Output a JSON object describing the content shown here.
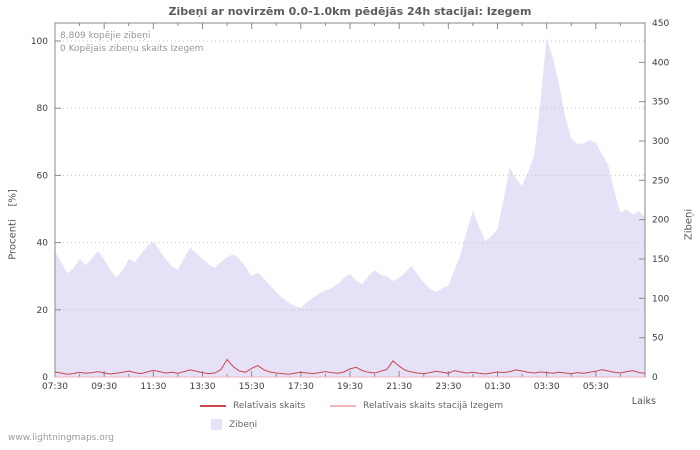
{
  "title": "Zibeņi ar novirzēm 0.0-1.0km pēdējās 24h stacijai: Izegem",
  "annotations": {
    "total": "8,809 kopējie zibeņi",
    "station_total": "0 Kopējais zibeņu skaits Izegem"
  },
  "watermark": "www.lightningmaps.org",
  "chart_data": {
    "type": "area",
    "x_start": "07:30",
    "x_interval_minutes": 15,
    "grid": "horizontal-dotted",
    "legend_position": "bottom",
    "left_axis": {
      "label": "Procenti    [%]",
      "range": [
        0,
        100
      ],
      "ticks": [
        0,
        20,
        40,
        60,
        80,
        100
      ]
    },
    "right_axis": {
      "label": "Zibeņi",
      "range": [
        0,
        450
      ],
      "ticks": [
        0,
        50,
        100,
        150,
        200,
        250,
        300,
        350,
        400,
        450
      ]
    },
    "x_axis": {
      "label": "Laiks",
      "tick_labels": [
        "07:30",
        "09:30",
        "11:30",
        "13:30",
        "15:30",
        "17:30",
        "19:30",
        "21:30",
        "23:30",
        "01:30",
        "03:30",
        "05:30"
      ]
    },
    "series": [
      {
        "name": "Zibeņi",
        "type": "area",
        "axis": "right",
        "color": "#e6e1f7",
        "values": [
          160,
          146,
          132,
          138,
          150,
          142,
          151,
          160,
          149,
          136,
          126,
          136,
          150,
          146,
          156,
          166,
          172,
          161,
          150,
          141,
          136,
          151,
          164,
          157,
          150,
          143,
          139,
          146,
          152,
          156,
          150,
          140,
          128,
          133,
          125,
          116,
          108,
          100,
          95,
          90,
          88,
          95,
          101,
          106,
          110,
          113,
          118,
          126,
          131,
          122,
          118,
          128,
          136,
          130,
          128,
          122,
          126,
          133,
          141,
          130,
          120,
          112,
          108,
          113,
          116,
          136,
          156,
          186,
          211,
          191,
          173,
          179,
          188,
          226,
          266,
          252,
          243,
          261,
          283,
          352,
          431,
          406,
          373,
          331,
          303,
          296,
          297,
          301,
          298,
          283,
          270,
          236,
          209,
          213,
          206,
          211,
          204
        ]
      },
      {
        "name": "Relatīvais skaits",
        "type": "line",
        "axis": "left",
        "color": "#c9484e",
        "values": [
          1.5,
          1.2,
          0.8,
          1.0,
          1.4,
          1.1,
          1.3,
          1.6,
          1.2,
          0.9,
          1.1,
          1.4,
          1.8,
          1.3,
          1.0,
          1.5,
          2.0,
          1.6,
          1.2,
          1.4,
          1.1,
          1.6,
          2.1,
          1.7,
          1.3,
          1.0,
          1.2,
          2.2,
          5.2,
          3.1,
          1.8,
          1.4,
          2.6,
          3.4,
          2.1,
          1.5,
          1.2,
          1.0,
          0.8,
          1.1,
          1.4,
          1.2,
          1.0,
          1.3,
          1.6,
          1.3,
          1.1,
          1.5,
          2.4,
          2.9,
          1.9,
          1.4,
          1.2,
          1.7,
          2.3,
          4.8,
          3.2,
          2.0,
          1.5,
          1.2,
          1.0,
          1.3,
          1.7,
          1.4,
          1.1,
          1.9,
          1.5,
          1.2,
          1.4,
          1.1,
          0.9,
          1.2,
          1.5,
          1.3,
          1.6,
          2.1,
          1.8,
          1.4,
          1.2,
          1.5,
          1.3,
          1.1,
          1.4,
          1.2,
          1.0,
          1.3,
          1.1,
          1.4,
          1.7,
          2.2,
          1.8,
          1.4,
          1.2,
          1.6,
          1.9,
          1.3,
          1.1
        ]
      },
      {
        "name": "Relatīvais skaits stacijā Izegem",
        "type": "line",
        "axis": "left",
        "color": "#f0b6bd",
        "values": [
          0,
          0,
          0,
          0,
          0,
          0,
          0,
          0,
          0,
          0,
          0,
          0,
          0,
          0,
          0,
          0,
          0,
          0,
          0,
          0,
          0,
          0,
          0,
          0,
          0,
          0,
          0,
          0,
          0,
          0,
          0,
          0,
          0,
          0,
          0,
          0,
          0,
          0,
          0,
          0,
          0,
          0,
          0,
          0,
          0,
          0,
          0,
          0,
          0,
          0,
          0,
          0,
          0,
          0,
          0,
          0,
          0,
          0,
          0,
          0,
          0,
          0,
          0,
          0,
          0,
          0,
          0,
          0,
          0,
          0,
          0,
          0,
          0,
          0,
          0,
          0,
          0,
          0,
          0,
          0,
          0,
          0,
          0,
          0,
          0,
          0,
          0,
          0,
          0,
          0,
          0,
          0,
          0,
          0,
          0,
          0,
          0
        ]
      }
    ]
  }
}
